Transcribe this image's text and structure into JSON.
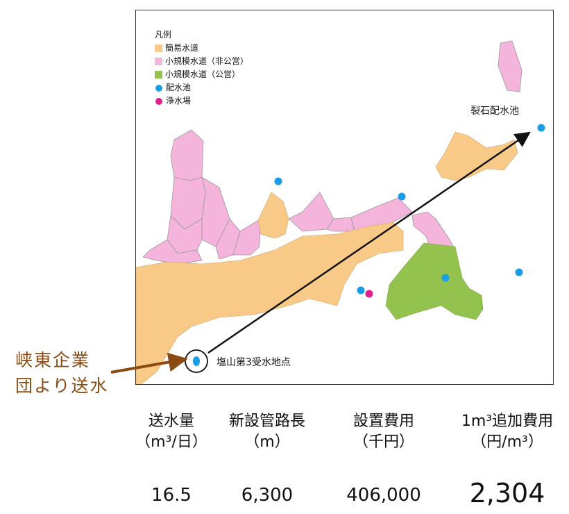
{
  "map": {
    "legend": {
      "title": "凡例",
      "items": [
        {
          "label": "簡易水道",
          "kind": "area",
          "color": "#f9c987"
        },
        {
          "label": "小規模水道（非公営）",
          "kind": "area",
          "color": "#f4b4dc"
        },
        {
          "label": "小規模水道（公営）",
          "kind": "area",
          "color": "#93c24f"
        },
        {
          "label": "配水池",
          "kind": "point",
          "color": "#1b9de6"
        },
        {
          "label": "浄水場",
          "kind": "point",
          "color": "#e0208a"
        }
      ]
    },
    "labels": {
      "reservoir_destination": "裂石配水池",
      "receiving_point": "塩山第3受水地点"
    },
    "callout": {
      "line1": "峡東企業",
      "line2": "団より送水",
      "color": "#8a4a12"
    }
  },
  "stats": [
    {
      "header1": "送水量",
      "header2": "（m³/日）",
      "value": "16.5"
    },
    {
      "header1": "新設管路長",
      "header2": "（m）",
      "value": "6,300"
    },
    {
      "header1": "設置費用",
      "header2": "（千円）",
      "value": "406,000"
    },
    {
      "header1": "1m³追加費用",
      "header2": "（円/m³）",
      "value": "2,304"
    }
  ]
}
